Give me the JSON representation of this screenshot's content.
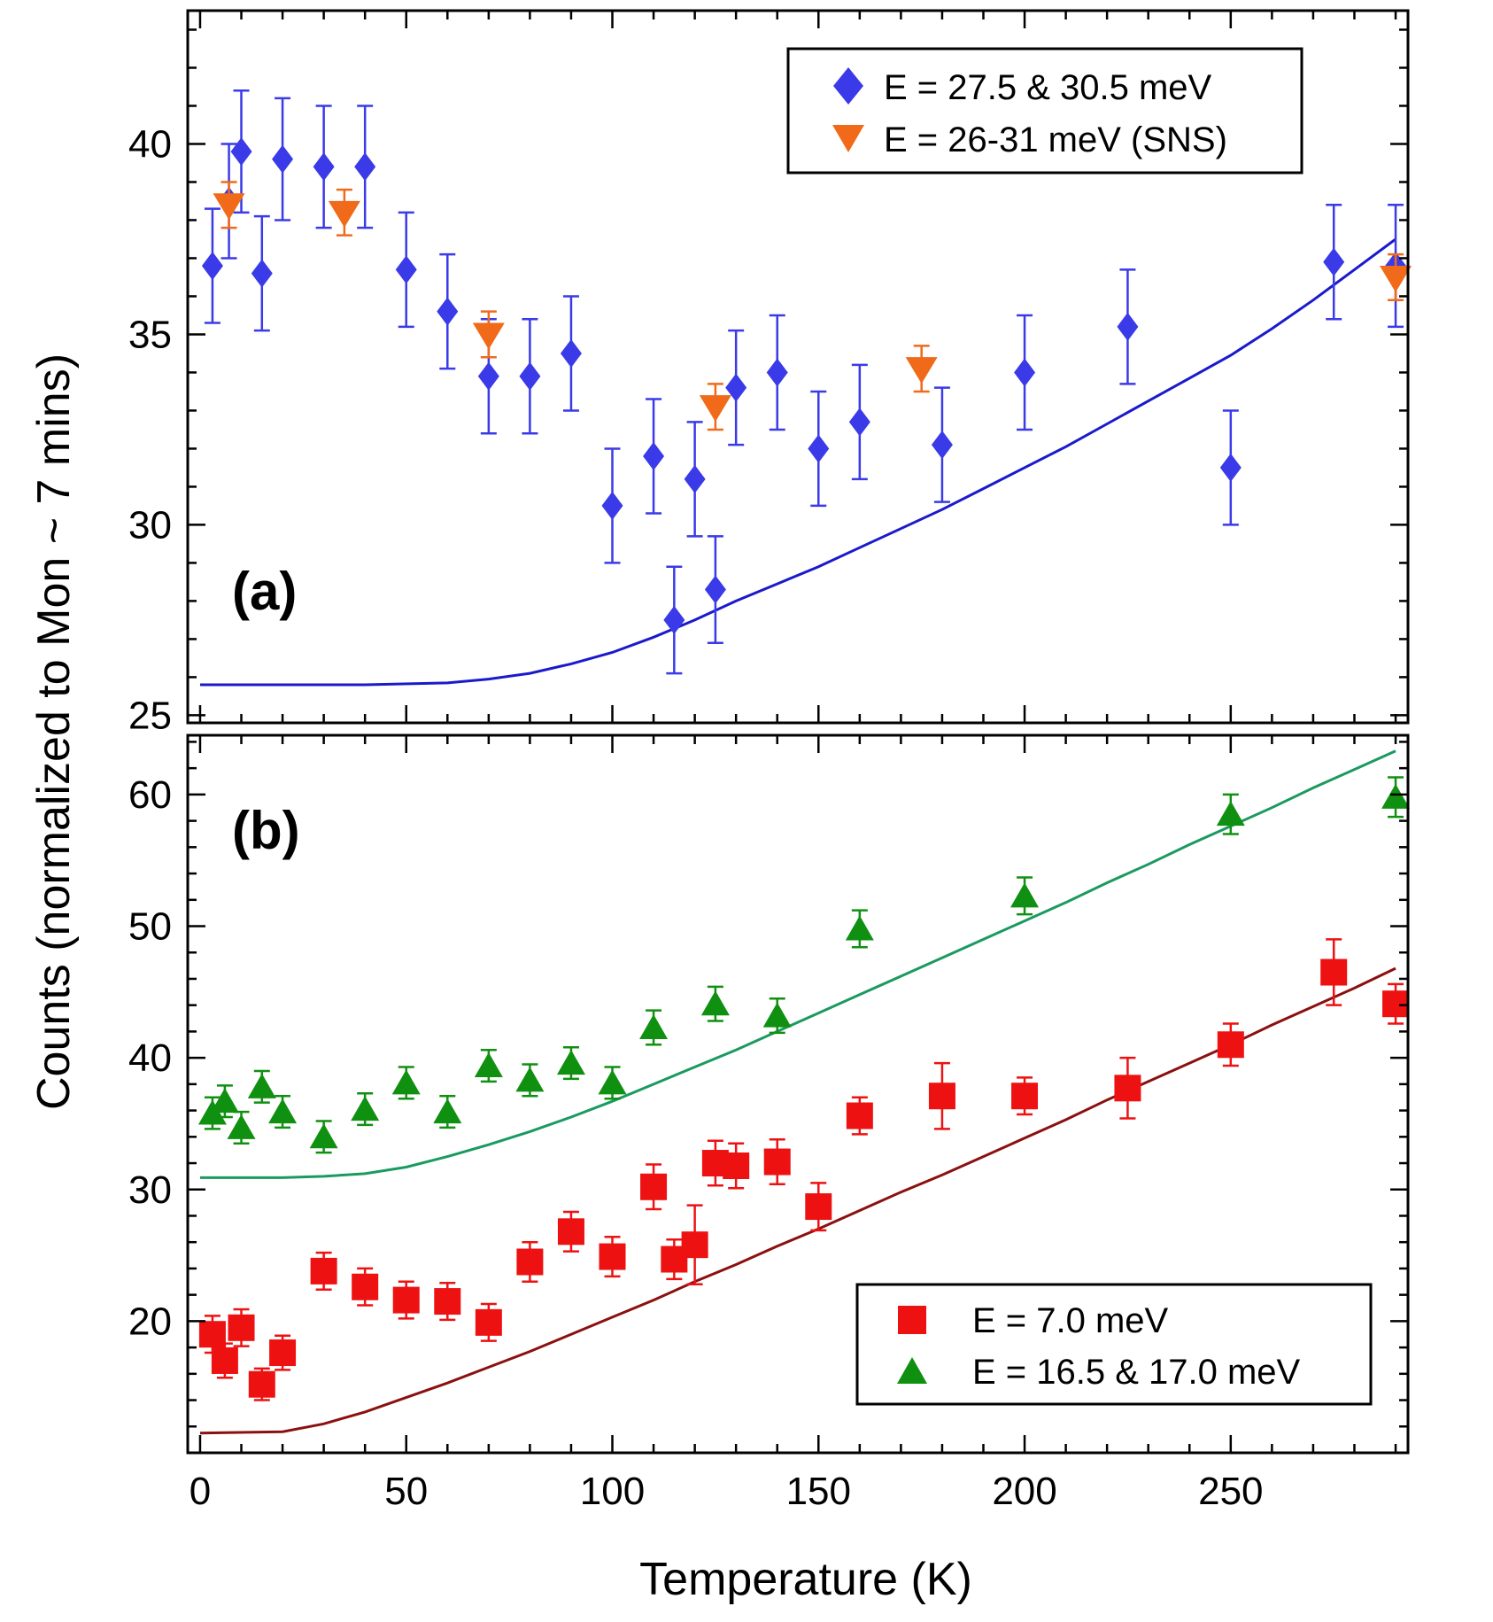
{
  "chart_data": [
    {
      "id": "a",
      "type": "scatter",
      "panel_label": "(a)",
      "xlim": [
        -3,
        293
      ],
      "ylim": [
        24.8,
        43.5
      ],
      "xticks": [
        0,
        50,
        100,
        150,
        200,
        250
      ],
      "yticks": [
        25,
        30,
        35,
        40
      ],
      "legend_position": "top-right",
      "series": [
        {
          "name": "E = 27.5 & 30.5 meV",
          "marker": "diamond",
          "color": "#3a3ae8",
          "points": [
            {
              "x": 3,
              "y": 36.8,
              "err": 1.5
            },
            {
              "x": 7,
              "y": 38.5,
              "err": 1.5
            },
            {
              "x": 10,
              "y": 39.8,
              "err": 1.6
            },
            {
              "x": 15,
              "y": 36.6,
              "err": 1.5
            },
            {
              "x": 20,
              "y": 39.6,
              "err": 1.6
            },
            {
              "x": 30,
              "y": 39.4,
              "err": 1.6
            },
            {
              "x": 40,
              "y": 39.4,
              "err": 1.6
            },
            {
              "x": 50,
              "y": 36.7,
              "err": 1.5
            },
            {
              "x": 60,
              "y": 35.6,
              "err": 1.5
            },
            {
              "x": 70,
              "y": 33.9,
              "err": 1.5
            },
            {
              "x": 80,
              "y": 33.9,
              "err": 1.5
            },
            {
              "x": 90,
              "y": 34.5,
              "err": 1.5
            },
            {
              "x": 100,
              "y": 30.5,
              "err": 1.5
            },
            {
              "x": 110,
              "y": 31.8,
              "err": 1.5
            },
            {
              "x": 115,
              "y": 27.5,
              "err": 1.4
            },
            {
              "x": 120,
              "y": 31.2,
              "err": 1.5
            },
            {
              "x": 125,
              "y": 28.3,
              "err": 1.4
            },
            {
              "x": 130,
              "y": 33.6,
              "err": 1.5
            },
            {
              "x": 140,
              "y": 34.0,
              "err": 1.5
            },
            {
              "x": 150,
              "y": 32.0,
              "err": 1.5
            },
            {
              "x": 160,
              "y": 32.7,
              "err": 1.5
            },
            {
              "x": 180,
              "y": 32.1,
              "err": 1.5
            },
            {
              "x": 200,
              "y": 34.0,
              "err": 1.5
            },
            {
              "x": 225,
              "y": 35.2,
              "err": 1.5
            },
            {
              "x": 250,
              "y": 31.5,
              "err": 1.5
            },
            {
              "x": 275,
              "y": 36.9,
              "err": 1.5
            },
            {
              "x": 290,
              "y": 36.8,
              "err": 1.6
            }
          ]
        },
        {
          "name": "E = 26-31 meV (SNS)",
          "marker": "triangle-down",
          "color": "#f06a1a",
          "points": [
            {
              "x": 7,
              "y": 38.4,
              "err": 0.6
            },
            {
              "x": 35,
              "y": 38.2,
              "err": 0.6
            },
            {
              "x": 70,
              "y": 35.0,
              "err": 0.6
            },
            {
              "x": 125,
              "y": 33.1,
              "err": 0.6
            },
            {
              "x": 175,
              "y": 34.1,
              "err": 0.6
            },
            {
              "x": 290,
              "y": 36.5,
              "err": 0.6
            }
          ]
        }
      ],
      "fit_line": {
        "color": "#1a1acc",
        "x": [
          0,
          20,
          40,
          60,
          70,
          80,
          90,
          100,
          110,
          120,
          130,
          140,
          150,
          160,
          170,
          180,
          190,
          200,
          210,
          220,
          230,
          240,
          250,
          260,
          270,
          280,
          290
        ],
        "y": [
          25.8,
          25.8,
          25.8,
          25.85,
          25.95,
          26.1,
          26.35,
          26.65,
          27.05,
          27.5,
          28.0,
          28.45,
          28.9,
          29.4,
          29.9,
          30.4,
          30.95,
          31.5,
          32.05,
          32.65,
          33.25,
          33.85,
          34.45,
          35.15,
          35.9,
          36.7,
          37.5
        ]
      }
    },
    {
      "id": "b",
      "type": "scatter",
      "panel_label": "(b)",
      "xlim": [
        -3,
        293
      ],
      "ylim": [
        10,
        64.5
      ],
      "xticks": [
        0,
        50,
        100,
        150,
        200,
        250
      ],
      "yticks": [
        20,
        30,
        40,
        50,
        60
      ],
      "legend_position": "bottom-right",
      "series": [
        {
          "name": "E = 7.0 meV",
          "marker": "square",
          "color": "#ee1111",
          "points": [
            {
              "x": 3,
              "y": 19.0,
              "err": 1.4
            },
            {
              "x": 6,
              "y": 17.0,
              "err": 1.3
            },
            {
              "x": 10,
              "y": 19.5,
              "err": 1.4
            },
            {
              "x": 15,
              "y": 15.2,
              "err": 1.2
            },
            {
              "x": 20,
              "y": 17.6,
              "err": 1.3
            },
            {
              "x": 30,
              "y": 23.8,
              "err": 1.4
            },
            {
              "x": 40,
              "y": 22.6,
              "err": 1.4
            },
            {
              "x": 50,
              "y": 21.6,
              "err": 1.4
            },
            {
              "x": 60,
              "y": 21.5,
              "err": 1.4
            },
            {
              "x": 70,
              "y": 19.9,
              "err": 1.4
            },
            {
              "x": 80,
              "y": 24.5,
              "err": 1.5
            },
            {
              "x": 90,
              "y": 26.8,
              "err": 1.5
            },
            {
              "x": 100,
              "y": 24.9,
              "err": 1.5
            },
            {
              "x": 110,
              "y": 30.2,
              "err": 1.7
            },
            {
              "x": 115,
              "y": 24.7,
              "err": 1.5
            },
            {
              "x": 120,
              "y": 25.8,
              "err": 3.0
            },
            {
              "x": 125,
              "y": 32.0,
              "err": 1.7
            },
            {
              "x": 130,
              "y": 31.8,
              "err": 1.7
            },
            {
              "x": 140,
              "y": 32.1,
              "err": 1.7
            },
            {
              "x": 150,
              "y": 28.7,
              "err": 1.8
            },
            {
              "x": 160,
              "y": 35.6,
              "err": 1.4
            },
            {
              "x": 180,
              "y": 37.1,
              "err": 2.5
            },
            {
              "x": 200,
              "y": 37.1,
              "err": 1.4
            },
            {
              "x": 225,
              "y": 37.7,
              "err": 2.3
            },
            {
              "x": 250,
              "y": 41.0,
              "err": 1.6
            },
            {
              "x": 275,
              "y": 46.5,
              "err": 2.5
            },
            {
              "x": 290,
              "y": 44.1,
              "err": 1.5
            }
          ]
        },
        {
          "name": "E = 16.5 & 17.0 meV",
          "marker": "triangle-up",
          "color": "#109010",
          "points": [
            {
              "x": 3,
              "y": 35.8,
              "err": 1.2
            },
            {
              "x": 6,
              "y": 36.7,
              "err": 1.2
            },
            {
              "x": 10,
              "y": 34.7,
              "err": 1.2
            },
            {
              "x": 15,
              "y": 37.8,
              "err": 1.2
            },
            {
              "x": 20,
              "y": 35.9,
              "err": 1.2
            },
            {
              "x": 30,
              "y": 34.0,
              "err": 1.2
            },
            {
              "x": 40,
              "y": 36.1,
              "err": 1.2
            },
            {
              "x": 50,
              "y": 38.1,
              "err": 1.2
            },
            {
              "x": 60,
              "y": 35.9,
              "err": 1.2
            },
            {
              "x": 70,
              "y": 39.4,
              "err": 1.2
            },
            {
              "x": 80,
              "y": 38.3,
              "err": 1.2
            },
            {
              "x": 90,
              "y": 39.6,
              "err": 1.2
            },
            {
              "x": 100,
              "y": 38.1,
              "err": 1.2
            },
            {
              "x": 110,
              "y": 42.3,
              "err": 1.3
            },
            {
              "x": 125,
              "y": 44.1,
              "err": 1.3
            },
            {
              "x": 140,
              "y": 43.2,
              "err": 1.3
            },
            {
              "x": 160,
              "y": 49.8,
              "err": 1.4
            },
            {
              "x": 200,
              "y": 52.3,
              "err": 1.4
            },
            {
              "x": 250,
              "y": 58.5,
              "err": 1.5
            },
            {
              "x": 290,
              "y": 59.8,
              "err": 1.5
            }
          ]
        }
      ],
      "fit_lines": [
        {
          "color": "#8b1010",
          "x": [
            0,
            20,
            30,
            40,
            50,
            60,
            70,
            80,
            90,
            100,
            110,
            120,
            130,
            140,
            150,
            160,
            170,
            180,
            190,
            200,
            210,
            220,
            230,
            240,
            250,
            260,
            270,
            280,
            290
          ],
          "y": [
            11.5,
            11.6,
            12.2,
            13.1,
            14.2,
            15.3,
            16.5,
            17.7,
            19.0,
            20.3,
            21.6,
            23.0,
            24.3,
            25.7,
            27.0,
            28.4,
            29.8,
            31.1,
            32.5,
            33.9,
            35.3,
            36.8,
            38.2,
            39.6,
            41.0,
            42.5,
            43.9,
            45.3,
            46.8
          ]
        },
        {
          "color": "#1a9a60",
          "x": [
            0,
            20,
            30,
            40,
            50,
            60,
            70,
            80,
            90,
            100,
            110,
            120,
            130,
            140,
            150,
            160,
            170,
            180,
            190,
            200,
            210,
            220,
            230,
            240,
            250,
            260,
            270,
            280,
            290
          ],
          "y": [
            30.9,
            30.9,
            31.0,
            31.2,
            31.7,
            32.5,
            33.4,
            34.4,
            35.5,
            36.7,
            38.0,
            39.3,
            40.6,
            42.0,
            43.4,
            44.8,
            46.2,
            47.6,
            49.0,
            50.4,
            51.8,
            53.3,
            54.7,
            56.2,
            57.6,
            59.0,
            60.5,
            61.9,
            63.3
          ]
        }
      ]
    }
  ],
  "axes": {
    "xlabel": "Temperature (K)",
    "ylabel": "Counts (normalized to Mon ~ 7 mins)"
  }
}
